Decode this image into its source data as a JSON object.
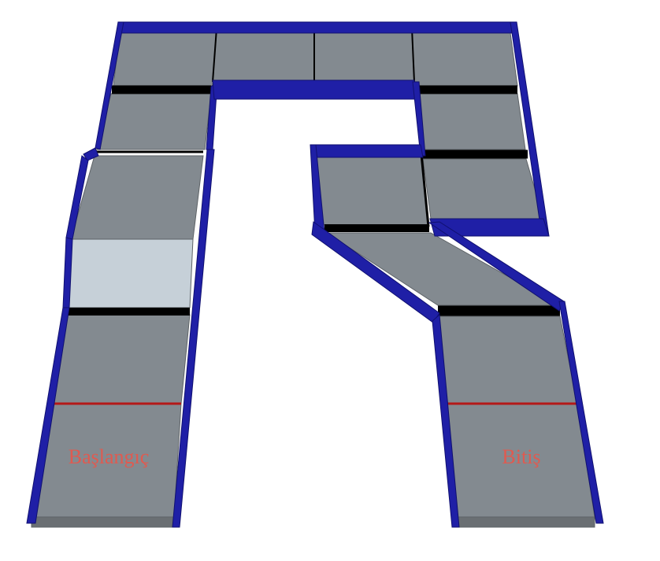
{
  "track": {
    "start_label": "Başlangıç",
    "finish_label": "Bitiş"
  },
  "colors": {
    "wall": "#1f1fa6",
    "wall_dark": "#141480",
    "floor": "#838a90",
    "floor_edge": "#6a6f73",
    "highlight_tile": "#c6d0d8",
    "divider": "#000000",
    "start_finish_line": "#b41818",
    "label_text": "#e05a50"
  }
}
